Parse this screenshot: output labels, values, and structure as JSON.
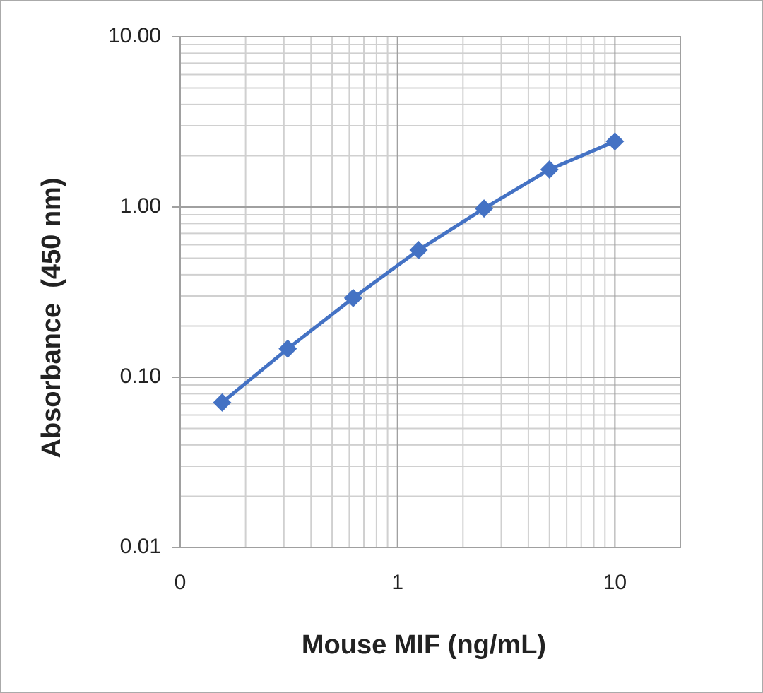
{
  "chart_data": {
    "type": "line",
    "x_label": "Mouse MIF (ng/mL)",
    "y_label": "Absorbance  (450 nm)",
    "x": [
      0.156,
      0.3125,
      0.625,
      1.25,
      2.5,
      5,
      10
    ],
    "series": [
      {
        "color": "#4472c4",
        "values": [
          0.071,
          0.147,
          0.292,
          0.558,
          0.98,
          1.66,
          2.43
        ]
      }
    ],
    "xlim": [
      0.1,
      20
    ],
    "ylim": [
      0.01,
      10
    ],
    "xticks": [
      {
        "value": 0.1,
        "label": "0"
      },
      1,
      10
    ],
    "yticks": [
      0.01,
      {
        "value": 0.1,
        "label": "0.10"
      },
      {
        "value": 1,
        "label": "1.00"
      },
      {
        "value": 10,
        "label": "10.00"
      }
    ],
    "xscale": "log",
    "yscale": "log",
    "grid": true,
    "minor_grid": true
  }
}
